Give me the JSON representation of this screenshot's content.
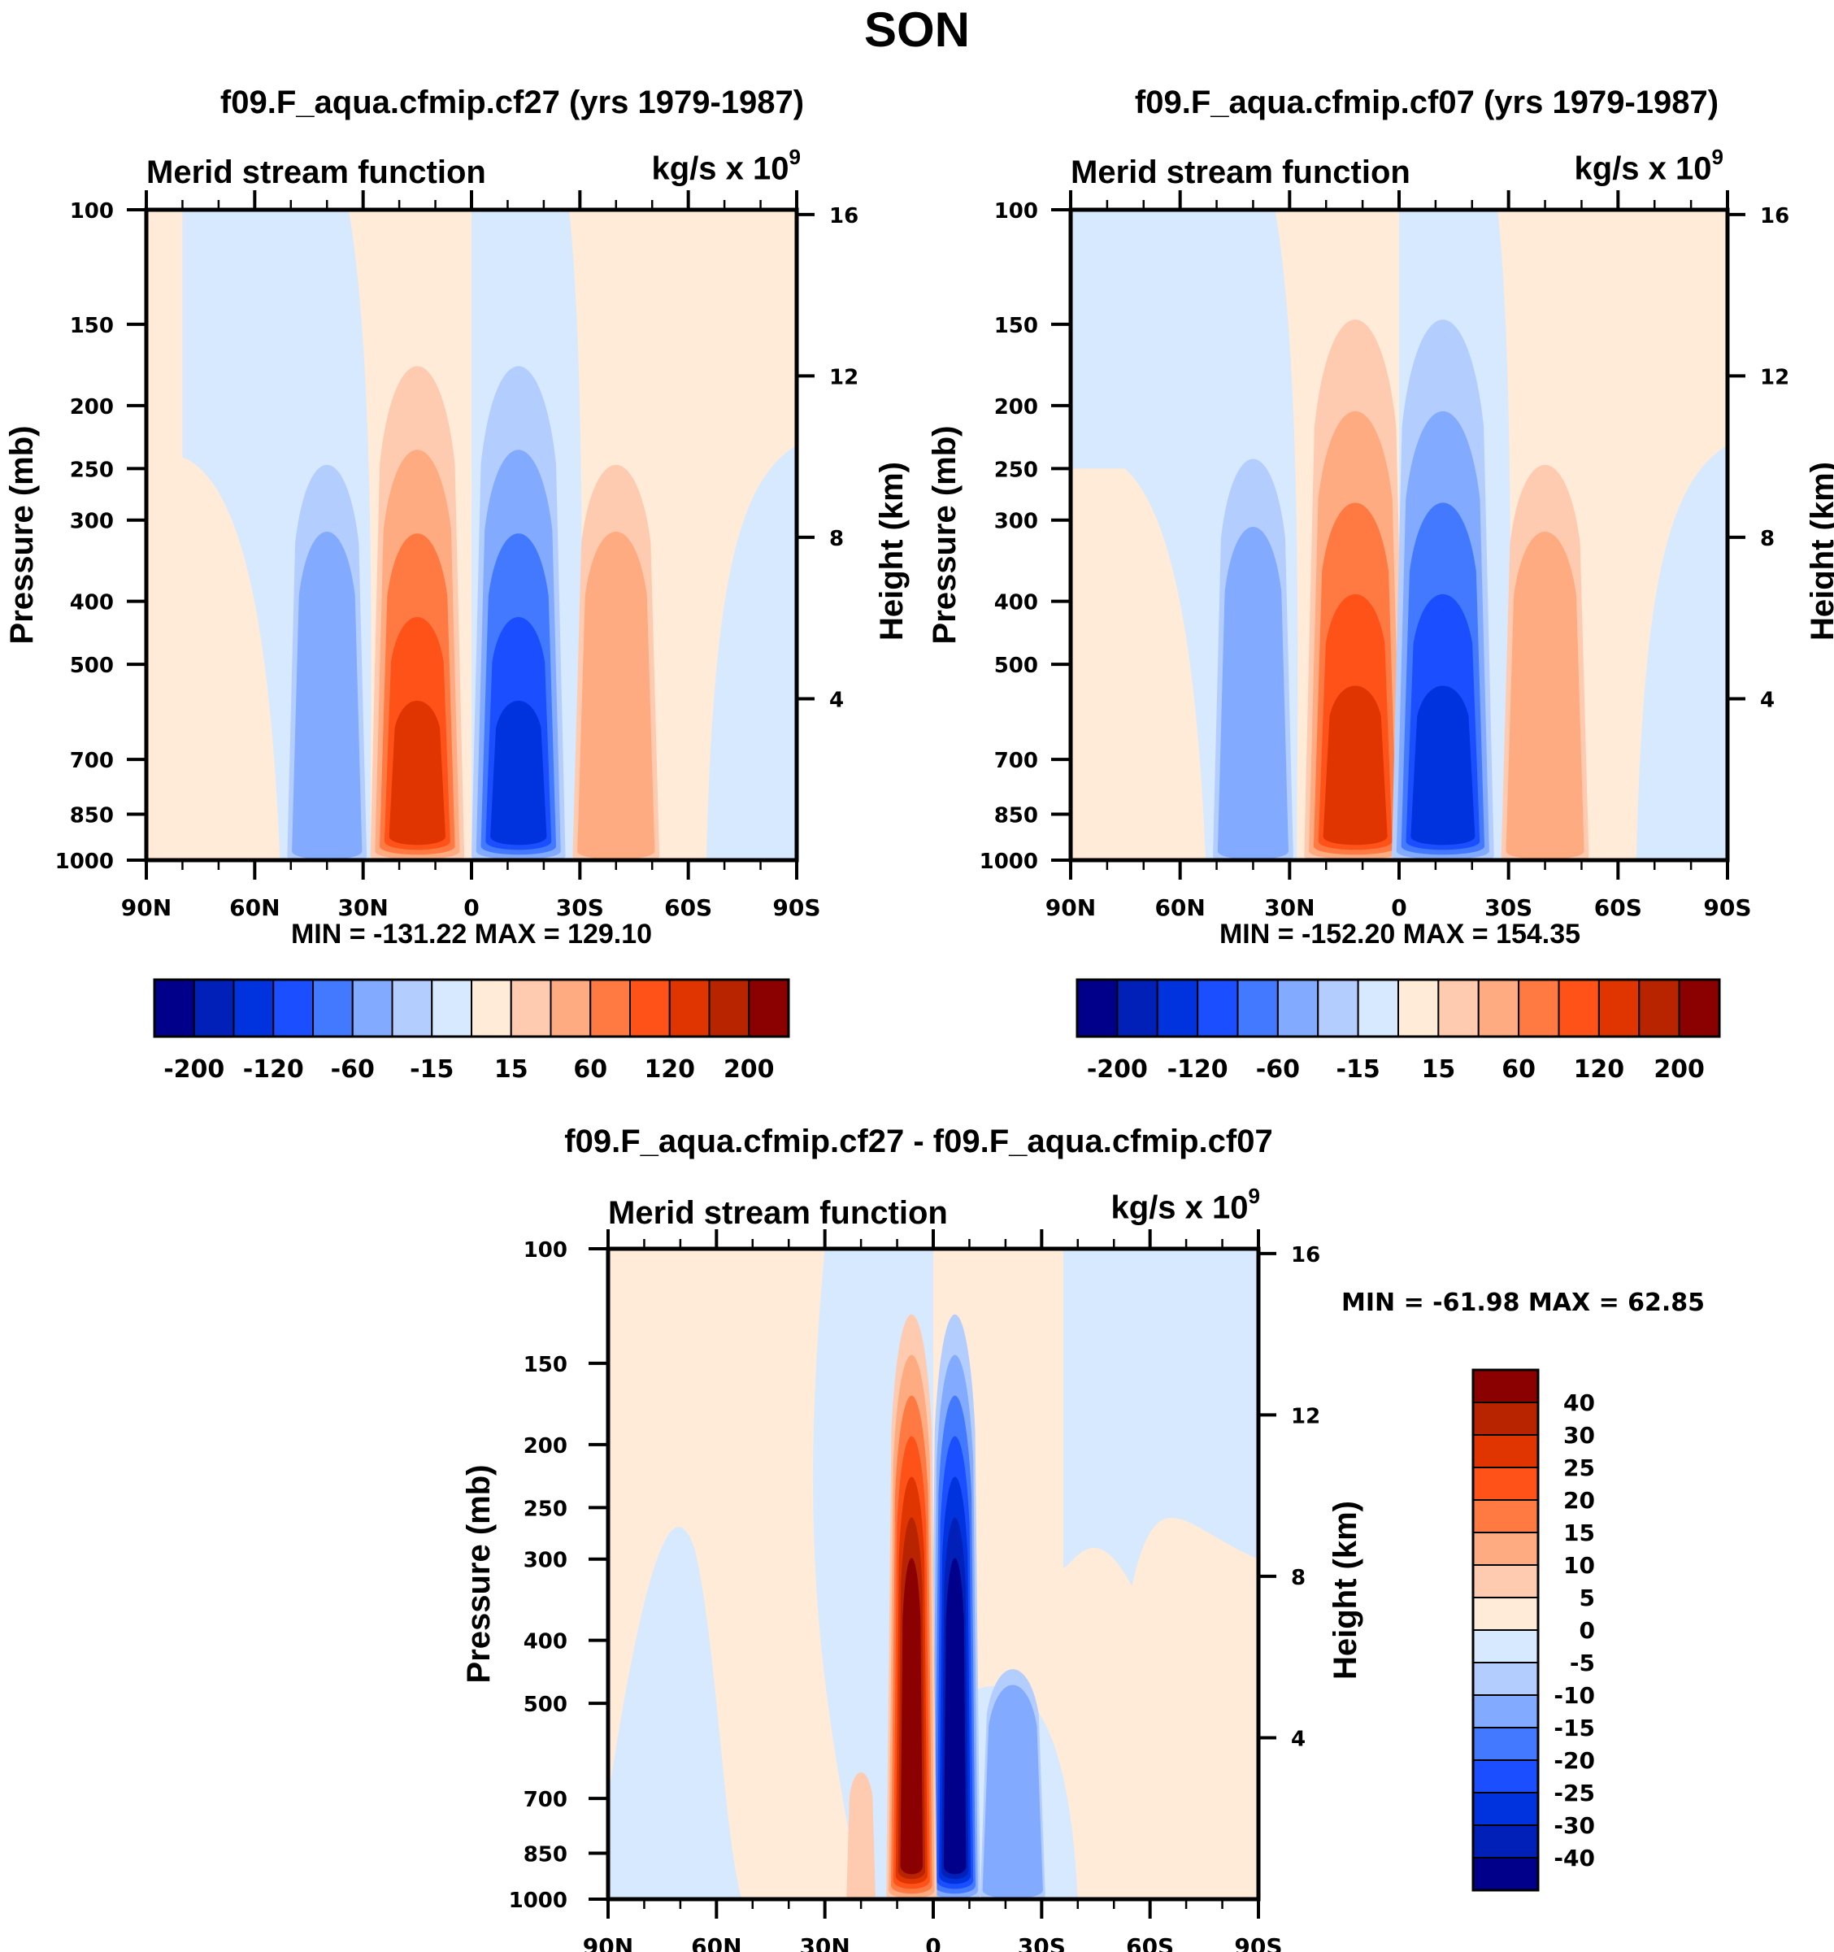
{
  "figure": {
    "title": "SON"
  },
  "chart_data": [
    {
      "type": "contour",
      "id": "panel-cf27",
      "title": "f09.F_aqua.cfmip.cf27 (yrs 1979-1987)",
      "subtitle_left": "Merid stream function",
      "units": "kg/s x 10",
      "units_exponent": "9",
      "xlabel": "",
      "ylabel": "Pressure (mb)",
      "ylabel_right": "Height (km)",
      "x_ticks": [
        "90N",
        "60N",
        "30N",
        "0",
        "30S",
        "60S",
        "90S"
      ],
      "x_range": [
        90,
        -90
      ],
      "y_ticks": [
        100,
        150,
        200,
        250,
        300,
        400,
        500,
        700,
        850,
        1000
      ],
      "y_range": [
        100,
        1000
      ],
      "y_scale": "log",
      "y_right_ticks": [
        16,
        12,
        8,
        4
      ],
      "minmax_text": "MIN = -131.22  MAX = 129.10",
      "min": -131.22,
      "max": 129.1,
      "colorbar": {
        "orientation": "horizontal",
        "levels": [
          -200,
          -160,
          -120,
          -80,
          -60,
          -40,
          -15,
          0,
          15,
          40,
          60,
          80,
          120,
          160,
          200
        ],
        "shown_labels": [
          "-200",
          "-120",
          "-60",
          "-15",
          "15",
          "60",
          "120",
          "200"
        ]
      },
      "cells": [
        {
          "lat": 40,
          "p": 650,
          "top": 225,
          "width": 22,
          "levels": [
            -15,
            -40
          ]
        },
        {
          "lat": 15,
          "p": 600,
          "top": 155,
          "width": 26,
          "levels": [
            15,
            40,
            60,
            80,
            120
          ]
        },
        {
          "lat": -13,
          "p": 600,
          "top": 155,
          "width": 26,
          "levels": [
            -15,
            -40,
            -60,
            -80,
            -120
          ]
        },
        {
          "lat": -40,
          "p": 650,
          "top": 225,
          "width": 24,
          "levels": [
            15,
            40
          ]
        }
      ]
    },
    {
      "type": "contour",
      "id": "panel-cf07",
      "title": "f09.F_aqua.cfmip.cf07 (yrs 1979-1987)",
      "subtitle_left": "Merid stream function",
      "units": "kg/s x 10",
      "units_exponent": "9",
      "xlabel": "",
      "ylabel": "Pressure (mb)",
      "ylabel_right": "Height (km)",
      "x_ticks": [
        "90N",
        "60N",
        "30N",
        "0",
        "30S",
        "60S",
        "90S"
      ],
      "x_range": [
        90,
        -90
      ],
      "y_ticks": [
        100,
        150,
        200,
        250,
        300,
        400,
        500,
        700,
        850,
        1000
      ],
      "y_range": [
        100,
        1000
      ],
      "y_scale": "log",
      "y_right_ticks": [
        16,
        12,
        8,
        4
      ],
      "minmax_text": "MIN = -152.20  MAX = 154.35",
      "min": -152.2,
      "max": 154.35,
      "colorbar": {
        "orientation": "horizontal",
        "levels": [
          -200,
          -160,
          -120,
          -80,
          -60,
          -40,
          -15,
          0,
          15,
          40,
          60,
          80,
          120,
          160,
          200
        ],
        "shown_labels": [
          "-200",
          "-120",
          "-60",
          "-15",
          "15",
          "60",
          "120",
          "200"
        ]
      },
      "cells": [
        {
          "lat": 40,
          "p": 650,
          "top": 220,
          "width": 22,
          "levels": [
            -15,
            -40
          ]
        },
        {
          "lat": 12,
          "p": 600,
          "top": 130,
          "width": 28,
          "levels": [
            15,
            40,
            60,
            80,
            120
          ]
        },
        {
          "lat": -12,
          "p": 600,
          "top": 130,
          "width": 28,
          "levels": [
            -15,
            -40,
            -60,
            -80,
            -120
          ]
        },
        {
          "lat": -40,
          "p": 650,
          "top": 225,
          "width": 24,
          "levels": [
            15,
            40
          ]
        }
      ]
    },
    {
      "type": "contour",
      "id": "panel-diff",
      "title": "f09.F_aqua.cfmip.cf27 - f09.F_aqua.cfmip.cf07",
      "subtitle_left": "Merid stream function",
      "units": "kg/s x 10",
      "units_exponent": "9",
      "xlabel": "",
      "ylabel": "Pressure (mb)",
      "ylabel_right": "Height (km)",
      "x_ticks": [
        "90N",
        "60N",
        "30N",
        "0",
        "30S",
        "60S",
        "90S"
      ],
      "x_range": [
        90,
        -90
      ],
      "y_ticks": [
        100,
        150,
        200,
        250,
        300,
        400,
        500,
        700,
        850,
        1000
      ],
      "y_range": [
        100,
        1000
      ],
      "y_scale": "log",
      "y_right_ticks": [
        16,
        12,
        8,
        4
      ],
      "minmax_text": "MIN = -61.98  MAX =  62.85",
      "min": -61.98,
      "max": 62.85,
      "colorbar": {
        "orientation": "vertical",
        "levels": [
          -40,
          -30,
          -25,
          -20,
          -15,
          -10,
          -5,
          0,
          5,
          10,
          15,
          20,
          25,
          30,
          40
        ],
        "shown_labels": [
          "40",
          "30",
          "25",
          "20",
          "15",
          "10",
          "5",
          "0",
          "-5",
          "-10",
          "-15",
          "-20",
          "-25",
          "-30",
          "-40"
        ]
      },
      "cells": [
        {
          "lat": -6,
          "p": 500,
          "top": 110,
          "width": 14,
          "levels": [
            -5,
            -10,
            -15,
            -20,
            -25,
            -30,
            -40
          ]
        },
        {
          "lat": 6,
          "p": 500,
          "top": 110,
          "width": 14,
          "levels": [
            5,
            10,
            15,
            20,
            25,
            30,
            40
          ]
        },
        {
          "lat": -22,
          "p": 700,
          "top": 420,
          "width": 18,
          "levels": [
            -5,
            -10
          ]
        },
        {
          "lat": 20,
          "p": 700,
          "top": 620,
          "width": 8,
          "levels": [
            5
          ]
        }
      ]
    }
  ],
  "palette": {
    "colors": [
      "#00008b",
      "#0020b8",
      "#0033dd",
      "#1a4eff",
      "#4279ff",
      "#82aaff",
      "#b3cdff",
      "#d6e9ff",
      "#ffebd8",
      "#ffcbb0",
      "#ffab82",
      "#ff7a42",
      "#ff5219",
      "#e03500",
      "#b82400",
      "#8b0000"
    ]
  }
}
